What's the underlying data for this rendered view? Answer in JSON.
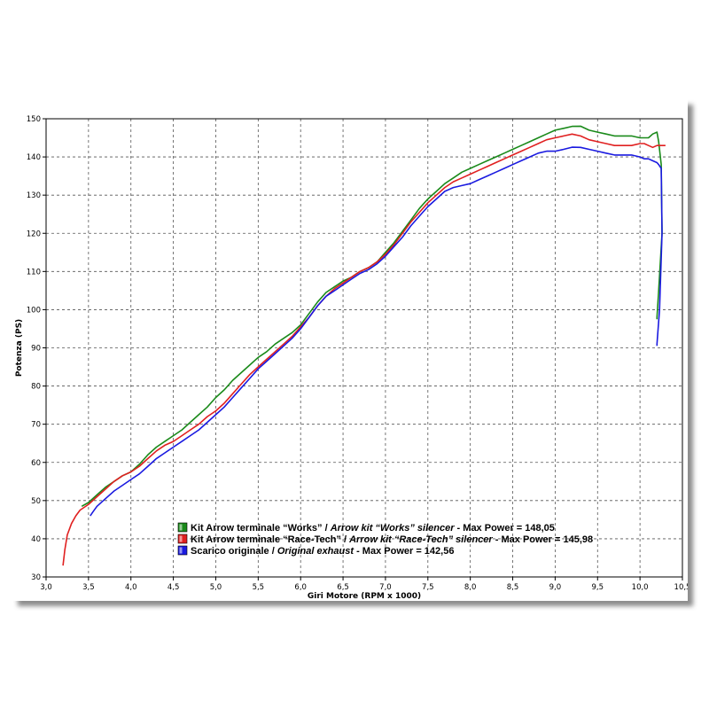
{
  "chart_data": {
    "type": "line",
    "xlabel": "Giri Motore (RPM x 1000)",
    "ylabel": "Potenza (PS)",
    "xlim": [
      3.0,
      10.5
    ],
    "ylim": [
      30,
      150
    ],
    "x_ticks": [
      "3,0",
      "3,5",
      "4,0",
      "4,5",
      "5,0",
      "5,5",
      "6,0",
      "6,5",
      "7,0",
      "7,5",
      "8,0",
      "8,5",
      "9,0",
      "9,5",
      "10,0",
      "10,5"
    ],
    "y_ticks": [
      "30",
      "40",
      "50",
      "60",
      "70",
      "80",
      "90",
      "100",
      "110",
      "120",
      "130",
      "140",
      "150"
    ],
    "grid": true,
    "legend_position": "bottom-left",
    "series": [
      {
        "name": "Kit Arrow terminale “Works” / Arrow kit “Works” silencer - Max Power = 148,05",
        "legend_plain": "Kit Arrow terminale “Works” / ",
        "legend_italic": "Arrow kit “Works” silencer",
        "legend_tail": " - Max Power = 148,05",
        "color": "#1a8a1a",
        "x": [
          3.42,
          3.5,
          3.6,
          3.7,
          3.8,
          3.9,
          4.0,
          4.1,
          4.2,
          4.3,
          4.4,
          4.5,
          4.6,
          4.7,
          4.8,
          4.9,
          5.0,
          5.1,
          5.2,
          5.3,
          5.4,
          5.5,
          5.6,
          5.7,
          5.8,
          5.9,
          6.0,
          6.1,
          6.2,
          6.3,
          6.4,
          6.5,
          6.6,
          6.7,
          6.8,
          6.9,
          7.0,
          7.1,
          7.2,
          7.3,
          7.4,
          7.5,
          7.6,
          7.7,
          7.8,
          7.9,
          8.0,
          8.1,
          8.2,
          8.3,
          8.4,
          8.5,
          8.6,
          8.7,
          8.8,
          8.9,
          9.0,
          9.1,
          9.2,
          9.3,
          9.4,
          9.5,
          9.6,
          9.7,
          9.8,
          9.9,
          10.0,
          10.05,
          10.1,
          10.15,
          10.2,
          10.22,
          10.25,
          10.26,
          10.22,
          10.2,
          10.2
        ],
        "y": [
          48.5,
          49.5,
          51.5,
          53.5,
          55,
          56.5,
          57.5,
          59.5,
          62,
          64,
          65.5,
          67,
          68.5,
          70.5,
          72.5,
          74.5,
          77,
          79,
          81.5,
          83.5,
          85.5,
          87.5,
          89,
          91,
          92.5,
          94,
          96,
          99,
          102,
          104.5,
          106,
          107.5,
          108.5,
          110,
          111,
          112.5,
          115,
          117.5,
          120.5,
          123.5,
          126.5,
          129,
          131,
          133,
          134.5,
          136,
          137,
          138,
          139,
          140,
          141,
          142,
          143,
          144,
          145,
          146,
          147,
          147.5,
          148,
          148.05,
          147,
          146.5,
          146,
          145.5,
          145.5,
          145.5,
          145,
          145,
          145,
          146,
          146.5,
          144,
          138,
          120,
          105,
          98,
          97.5
        ]
      },
      {
        "name": "Kit Arrow terminale “Race-Tech” / Arrow kit “Race-Tech” silencer - Max Power = 145,98",
        "legend_plain": "Kit Arrow terminale “Race-Tech” / ",
        "legend_italic": "Arrow kit “Race-Tech” silencer",
        "legend_tail": " - Max Power = 145,98",
        "color": "#e02020",
        "x": [
          3.2,
          3.22,
          3.25,
          3.3,
          3.35,
          3.4,
          3.5,
          3.6,
          3.7,
          3.8,
          3.9,
          4.0,
          4.1,
          4.2,
          4.3,
          4.4,
          4.5,
          4.6,
          4.7,
          4.8,
          4.9,
          5.0,
          5.1,
          5.2,
          5.3,
          5.4,
          5.5,
          5.6,
          5.7,
          5.8,
          5.9,
          6.0,
          6.1,
          6.2,
          6.3,
          6.4,
          6.5,
          6.6,
          6.7,
          6.8,
          6.9,
          7.0,
          7.1,
          7.2,
          7.3,
          7.4,
          7.5,
          7.6,
          7.7,
          7.8,
          7.9,
          8.0,
          8.1,
          8.2,
          8.3,
          8.4,
          8.5,
          8.6,
          8.7,
          8.8,
          8.9,
          9.0,
          9.1,
          9.2,
          9.3,
          9.4,
          9.5,
          9.6,
          9.7,
          9.8,
          9.9,
          10.0,
          10.05,
          10.1,
          10.15,
          10.2,
          10.25,
          10.3
        ],
        "y": [
          33,
          37,
          41,
          44,
          46,
          47.5,
          49,
          51,
          53,
          55,
          56.5,
          57.5,
          59,
          61,
          63,
          64.5,
          65.5,
          67,
          68.5,
          70,
          72,
          73.5,
          75.5,
          78,
          80.5,
          83,
          85,
          87,
          89,
          91,
          93,
          95.5,
          98,
          101,
          103.5,
          105.5,
          107,
          108.5,
          110,
          111,
          112.5,
          114.5,
          117,
          120,
          123,
          125.5,
          128,
          130,
          132,
          133.5,
          134.5,
          135.5,
          136.5,
          137.5,
          138.5,
          139.5,
          140.5,
          141.5,
          142.5,
          143.5,
          144.5,
          145,
          145.5,
          145.98,
          145.5,
          144.5,
          144,
          143.5,
          143,
          143,
          143,
          143.5,
          143.5,
          143,
          142.5,
          143,
          143,
          143
        ]
      },
      {
        "name": "Scarico originale / Original exhaust - Max Power = 142,56",
        "legend_plain": "Scarico originale / ",
        "legend_italic": "Original exhaust",
        "legend_tail": " - Max Power = 142,56",
        "color": "#1a1ae0",
        "x": [
          3.52,
          3.55,
          3.6,
          3.7,
          3.8,
          3.9,
          4.0,
          4.1,
          4.2,
          4.3,
          4.4,
          4.5,
          4.6,
          4.7,
          4.8,
          4.9,
          5.0,
          5.1,
          5.2,
          5.3,
          5.4,
          5.5,
          5.6,
          5.7,
          5.8,
          5.9,
          6.0,
          6.1,
          6.2,
          6.3,
          6.4,
          6.5,
          6.6,
          6.7,
          6.8,
          6.9,
          7.0,
          7.1,
          7.2,
          7.3,
          7.4,
          7.5,
          7.6,
          7.7,
          7.8,
          7.9,
          8.0,
          8.1,
          8.2,
          8.3,
          8.4,
          8.5,
          8.6,
          8.7,
          8.8,
          8.9,
          9.0,
          9.1,
          9.2,
          9.3,
          9.4,
          9.5,
          9.6,
          9.7,
          9.8,
          9.9,
          10.0,
          10.05,
          10.1,
          10.15,
          10.2,
          10.22,
          10.25,
          10.26,
          10.23,
          10.2,
          10.2
        ],
        "y": [
          46,
          47,
          48.5,
          50.5,
          52.5,
          54,
          55.5,
          57,
          59,
          61,
          62.5,
          64,
          65.5,
          67,
          68.5,
          70.5,
          72.5,
          74.5,
          77,
          79.5,
          82,
          84.5,
          86.5,
          88.5,
          90.5,
          92.5,
          95,
          98,
          101,
          103.5,
          105,
          106.5,
          108,
          109.5,
          110.5,
          112,
          114,
          116.5,
          119,
          122,
          124.5,
          127,
          129,
          131,
          132,
          132.5,
          133,
          134,
          135,
          136,
          137,
          138,
          139,
          140,
          141,
          141.5,
          141.5,
          142,
          142.56,
          142.5,
          142,
          141.5,
          141,
          140.5,
          140.5,
          140.5,
          140,
          139.5,
          139.5,
          139,
          138.5,
          138,
          137,
          120,
          100,
          91,
          90.5
        ]
      }
    ]
  }
}
